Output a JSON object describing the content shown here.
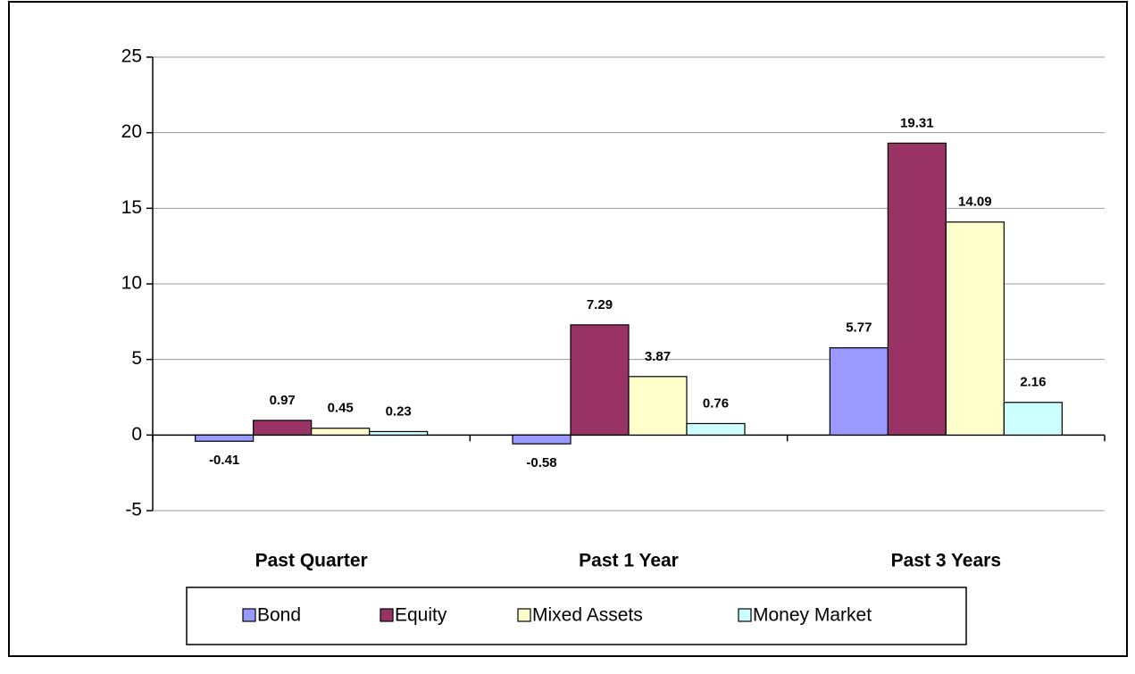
{
  "chart_data": {
    "type": "bar",
    "categories": [
      "Past Quarter",
      "Past 1 Year",
      "Past 3 Years"
    ],
    "series": [
      {
        "name": "Bond",
        "color": "#9999ff",
        "values": [
          -0.41,
          -0.58,
          5.77
        ]
      },
      {
        "name": "Equity",
        "color": "#993366",
        "values": [
          0.97,
          7.29,
          19.31
        ]
      },
      {
        "name": "Mixed Assets",
        "color": "#ffffcc",
        "values": [
          0.45,
          3.87,
          14.09
        ]
      },
      {
        "name": "Money Market",
        "color": "#ccffff",
        "values": [
          0.23,
          0.76,
          2.16
        ]
      }
    ],
    "ylim": [
      -5,
      25
    ],
    "yticks": [
      -5,
      0,
      5,
      10,
      15,
      20,
      25
    ],
    "grid": true,
    "legend": "bottom"
  }
}
